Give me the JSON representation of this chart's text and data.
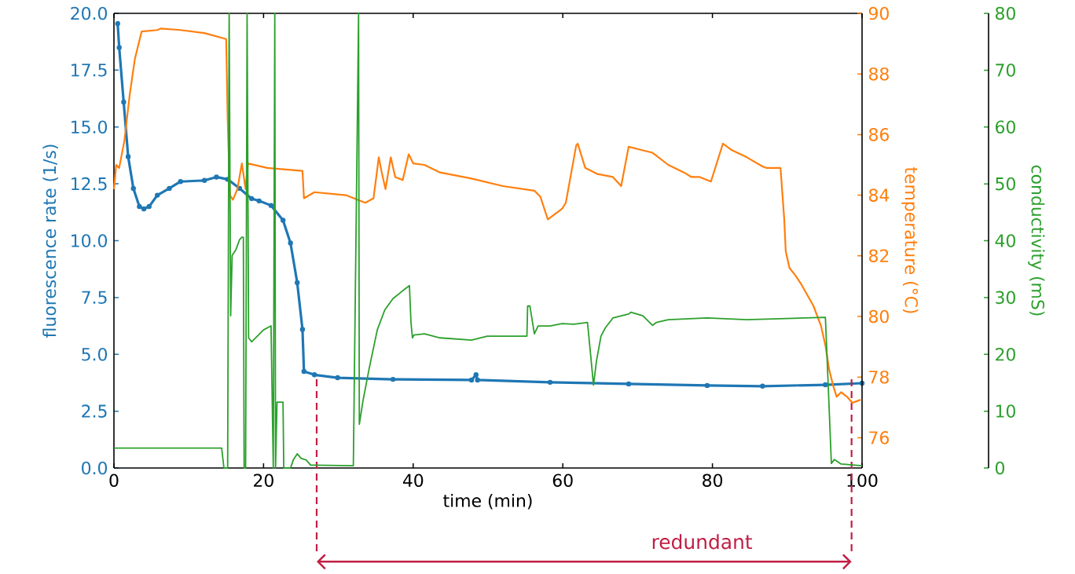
{
  "chart_data": {
    "type": "line",
    "xlabel": "time (min)",
    "ylabel": "fluorescence rate (1/s)",
    "y2label": "temperature (°C)",
    "y3label": "conductivity (mS)",
    "xlim": [
      0,
      100
    ],
    "xticks": [
      0,
      20,
      40,
      60,
      80,
      100
    ],
    "ylim": [
      0,
      20
    ],
    "yticks": [
      {
        "value": 0,
        "label": "0.0"
      },
      2.5,
      {
        "value": 5,
        "label": "5.0"
      },
      7.5,
      {
        "value": 10,
        "label": "10.0"
      },
      12.5,
      {
        "value": 15,
        "label": "15.0"
      },
      17.5,
      {
        "value": 20,
        "label": "20.0"
      }
    ],
    "y2lim": [
      75,
      90
    ],
    "y2ticks": [
      76,
      78,
      80,
      82,
      84,
      86,
      88,
      90
    ],
    "y3lim": [
      0,
      80
    ],
    "y3ticks": [
      0,
      10,
      20,
      30,
      40,
      50,
      60,
      70,
      80
    ],
    "series": [
      {
        "color": "#1f77b4",
        "marker": "circle",
        "x": [
          0.5,
          0.7,
          1.3,
          1.9,
          2.6,
          3.4,
          4.0,
          4.7,
          5.8,
          7.4,
          8.9,
          12.1,
          13.7,
          15.2,
          16.8,
          18.4,
          19.4,
          21.0,
          22.6,
          23.6,
          24.5,
          25.2,
          25.4,
          26.8,
          29.9,
          37.3,
          47.8,
          48.4,
          48.6,
          58.3,
          68.8,
          79.3,
          86.7,
          95.1,
          100
        ],
        "values": [
          19.55,
          18.5,
          16.1,
          13.7,
          12.3,
          11.5,
          11.4,
          11.5,
          12.0,
          12.3,
          12.6,
          12.65,
          12.8,
          12.7,
          12.3,
          11.85,
          11.75,
          11.55,
          10.9,
          9.9,
          8.15,
          6.1,
          4.25,
          4.1,
          3.97,
          3.9,
          3.87,
          4.1,
          3.87,
          3.77,
          3.7,
          3.63,
          3.6,
          3.66,
          3.73
        ]
      },
      {
        "color": "#ff7f0e",
        "axis": "y2",
        "marker": "none",
        "x": [
          0,
          0.3,
          0.7,
          1.4,
          2.1,
          2.8,
          3.7,
          5.8,
          6.3,
          8.9,
          12.1,
          15.0,
          15.2,
          15.5,
          15.9,
          16.5,
          17.1,
          17.6,
          17.9,
          20.5,
          25.2,
          25.4,
          26.8,
          31.0,
          33.6,
          34.7,
          35.4,
          35.8,
          36.3,
          37.0,
          37.6,
          38.6,
          39.4,
          40.0,
          41.5,
          43.6,
          47.8,
          52.0,
          56.2,
          57.0,
          58.0,
          59.9,
          60.4,
          61.8,
          62.0,
          63.0,
          64.6,
          66.7,
          67.8,
          68.8,
          70.4,
          72.0,
          74.1,
          76.2,
          77.2,
          78.3,
          79.8,
          81.4,
          82.5,
          84.6,
          86.7,
          87.2,
          89.1,
          89.6,
          89.8,
          90.3,
          91.1,
          91.9,
          93.5,
          94.5,
          95.1,
          95.6,
          96.1,
          96.6,
          97.2,
          98.0,
          98.7,
          99.8
        ],
        "values": [
          84.2,
          85.0,
          84.9,
          85.8,
          87.3,
          88.5,
          89.4,
          89.45,
          89.5,
          89.45,
          89.35,
          89.15,
          86.55,
          84.0,
          83.85,
          84.2,
          85.05,
          84.2,
          85.05,
          84.9,
          84.8,
          83.9,
          84.1,
          84.0,
          83.75,
          83.9,
          85.25,
          84.75,
          84.2,
          85.25,
          84.6,
          84.5,
          85.35,
          85.05,
          85.0,
          84.75,
          84.55,
          84.3,
          84.15,
          83.95,
          83.2,
          83.55,
          83.75,
          85.65,
          85.7,
          84.9,
          84.7,
          84.6,
          84.3,
          85.6,
          85.5,
          85.4,
          85.0,
          84.75,
          84.6,
          84.6,
          84.45,
          85.7,
          85.5,
          85.25,
          84.95,
          84.9,
          84.9,
          83.2,
          82.15,
          81.6,
          81.35,
          81.05,
          80.35,
          79.7,
          79.05,
          78.25,
          77.75,
          77.35,
          77.5,
          77.35,
          77.15,
          77.25
        ]
      },
      {
        "color": "#2ca02c",
        "axis": "y3",
        "marker": "none",
        "x": [
          0,
          14.4,
          14.7,
          15.2,
          15.4,
          15.6,
          15.8,
          16.3,
          16.8,
          17.1,
          17.3,
          17.4,
          17.6,
          17.8,
          18.0,
          18.4,
          20.0,
          21.0,
          21.3,
          21.5,
          21.6,
          21.8,
          22.6,
          22.7,
          23.6,
          24.0,
          24.5,
          25.0,
          25.7,
          26.3,
          26.8,
          32.0,
          32.7,
          32.8,
          33.3,
          34.1,
          35.2,
          36.2,
          37.3,
          38.9,
          39.5,
          39.7,
          39.9,
          40.1,
          41.5,
          43.6,
          47.8,
          49.9,
          55.2,
          55.3,
          55.6,
          56.2,
          56.7,
          58.3,
          59.9,
          61.5,
          63.3,
          63.8,
          64.1,
          64.5,
          65.1,
          65.7,
          66.7,
          68.8,
          69.1,
          70.7,
          72.0,
          72.5,
          74.1,
          79.3,
          84.6,
          95.1,
          95.3,
          95.6,
          95.9,
          96.3,
          97.2,
          100
        ],
        "values": [
          3.5,
          3.5,
          0,
          0,
          80,
          26.8,
          37.4,
          38.4,
          40.2,
          40.6,
          40.6,
          0,
          0,
          80,
          22.9,
          22.2,
          24.3,
          25.0,
          0,
          80,
          0,
          11.6,
          11.6,
          0,
          0,
          1.5,
          2.5,
          1.7,
          1.4,
          0.5,
          0.5,
          0.4,
          80,
          7.7,
          11.9,
          17.4,
          24.3,
          27.8,
          29.8,
          31.5,
          32.1,
          25.7,
          22.9,
          23.4,
          23.6,
          22.9,
          22.5,
          23.2,
          23.2,
          28.5,
          28.5,
          23.6,
          25.0,
          25.0,
          25.4,
          25.3,
          25.6,
          18.8,
          14.6,
          18.8,
          23.2,
          24.7,
          26.4,
          27.1,
          27.4,
          26.8,
          25.1,
          25.6,
          26.1,
          26.4,
          26.1,
          26.5,
          20.2,
          10.5,
          0.8,
          1.5,
          0.7,
          0.4
        ]
      }
    ],
    "ref_lines": [
      {
        "axis": "x",
        "value": 27.1,
        "color": "#c21e45",
        "line_style": "dashed"
      },
      {
        "axis": "x",
        "value": 98.6,
        "color": "#c21e45",
        "line_style": "dashed"
      }
    ],
    "annotations": [
      "redundant"
    ]
  }
}
